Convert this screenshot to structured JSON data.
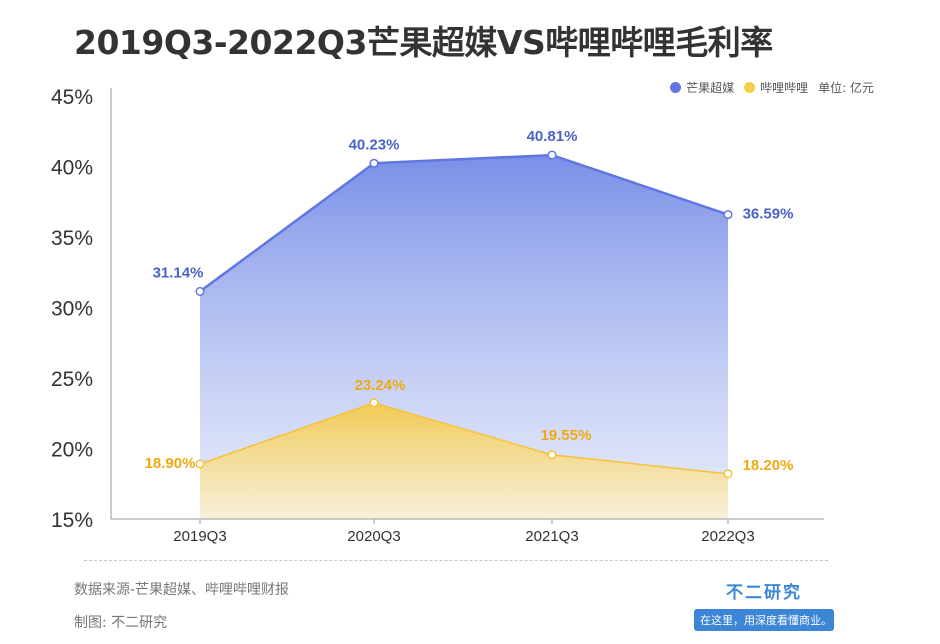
{
  "title": "2019Q3-2022Q3芒果超媒VS哔哩哔哩毛利率",
  "legend": {
    "series_a": "芒果超媒",
    "series_b": "哔哩哔哩",
    "unit_note": "单位: 亿元"
  },
  "colors": {
    "series_a": "#6077e0",
    "series_b": "#f5c23c",
    "series_a_label": "#4a63c8",
    "series_b_label": "#eeaa12",
    "axis_text": "#333333"
  },
  "chart_data": {
    "type": "area",
    "title": "2019Q3-2022Q3芒果超媒VS哔哩哔哩毛利率",
    "categories": [
      "2019Q3",
      "2020Q3",
      "2021Q3",
      "2022Q3"
    ],
    "ylim": [
      15,
      45
    ],
    "yticks": [
      "15%",
      "20%",
      "25%",
      "30%",
      "35%",
      "40%",
      "45%"
    ],
    "ytick_values": [
      15,
      20,
      25,
      30,
      35,
      40,
      45
    ],
    "series": [
      {
        "name": "芒果超媒",
        "values": [
          31.14,
          40.23,
          40.81,
          36.59
        ],
        "labels": [
          "31.14%",
          "40.23%",
          "40.81%",
          "36.59%"
        ]
      },
      {
        "name": "哔哩哔哩",
        "values": [
          18.9,
          23.24,
          19.55,
          18.2
        ],
        "labels": [
          "18.90%",
          "23.24%",
          "19.55%",
          "18.20%"
        ]
      }
    ],
    "grid": false,
    "legend_position": "top-right"
  },
  "footer": {
    "source": "数据来源-芒果超媒、哔哩哔哩财报",
    "maker": "制图: 不二研究",
    "brand_name": "不二研究",
    "brand_slogan": "在这里，用深度看懂商业。"
  }
}
